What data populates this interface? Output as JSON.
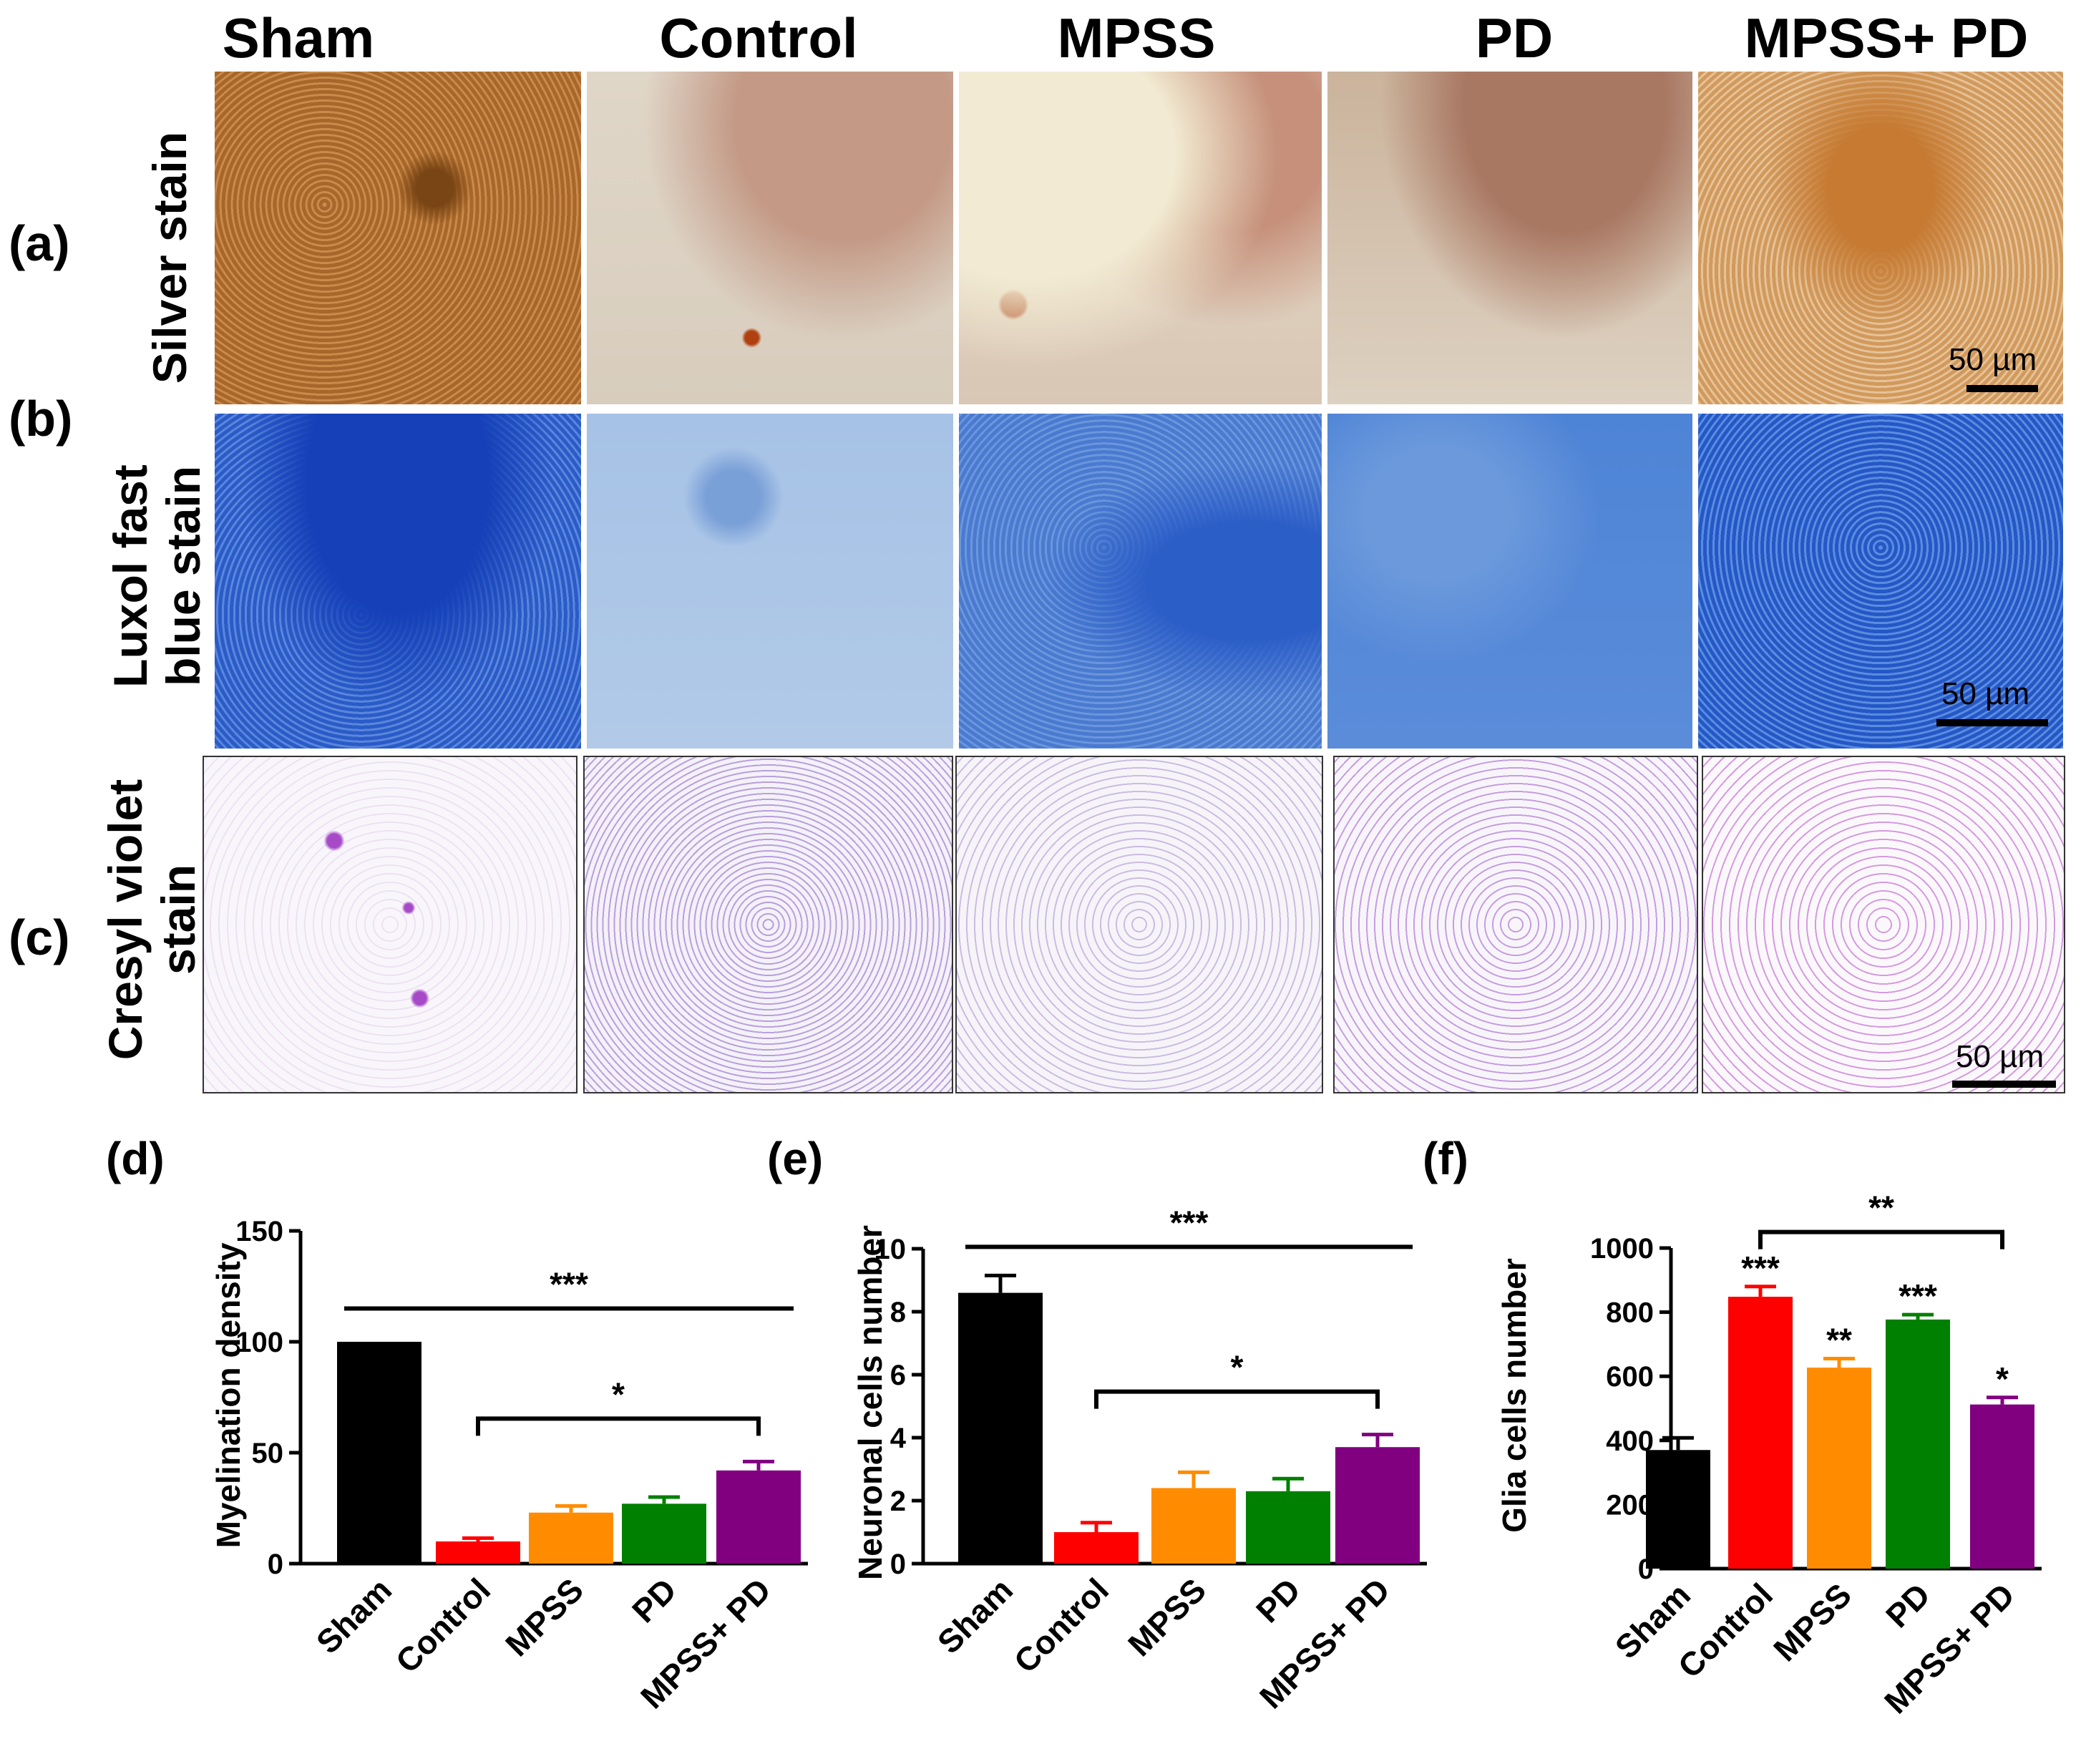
{
  "columns": [
    "Sham",
    "Control",
    "MPSS",
    "PD",
    "MPSS+ PD"
  ],
  "rows": [
    {
      "letter": "(a)",
      "label_lines": [
        "Silver stain"
      ]
    },
    {
      "letter": "(b)",
      "label_lines": [
        "Luxol fast",
        "blue stain"
      ]
    },
    {
      "letter": "(c)",
      "label_lines": [
        "Cresyl violet",
        "stain"
      ]
    }
  ],
  "scale_bar_label": "50 µm",
  "colors": {
    "Sham": "#000000",
    "Control": "#ff0000",
    "MPSS": "#ff8c00",
    "PD": "#008000",
    "MPSS+ PD": "#800080"
  },
  "chart_data": [
    {
      "panel": "(d)",
      "type": "bar",
      "categories": [
        "Sham",
        "Control",
        "MPSS",
        "PD",
        "MPSS+ PD"
      ],
      "values": [
        100,
        10,
        23,
        27,
        42
      ],
      "errors": [
        0,
        1.5,
        3,
        3,
        4
      ],
      "ylabel": "Myelination density",
      "ylim": [
        0,
        150
      ],
      "yticks": [
        0,
        50,
        100,
        150
      ],
      "annotations": [
        {
          "type": "line",
          "from": "Sham",
          "to": "MPSS+ PD",
          "label": "***"
        },
        {
          "type": "bracket",
          "from": "Control",
          "to": "MPSS+ PD",
          "label": "*"
        }
      ]
    },
    {
      "panel": "(e)",
      "type": "bar",
      "categories": [
        "Sham",
        "Control",
        "MPSS",
        "PD",
        "MPSS+ PD"
      ],
      "values": [
        8.6,
        1.0,
        2.4,
        2.3,
        3.7
      ],
      "errors": [
        0.55,
        0.3,
        0.5,
        0.4,
        0.4
      ],
      "ylabel": "Neuronal cells number",
      "ylim": [
        0,
        10
      ],
      "yticks": [
        0,
        2,
        4,
        6,
        8,
        10
      ],
      "annotations": [
        {
          "type": "line",
          "from": "Sham",
          "to": "MPSS+ PD",
          "label": "***"
        },
        {
          "type": "bracket",
          "from": "Control",
          "to": "MPSS+ PD",
          "label": "*"
        }
      ]
    },
    {
      "panel": "(f)",
      "type": "bar",
      "categories": [
        "Sham",
        "Control",
        "MPSS",
        "PD",
        "MPSS+ PD"
      ],
      "values": [
        370,
        848,
        627,
        777,
        512
      ],
      "errors": [
        38,
        32,
        28,
        15,
        22
      ],
      "ylabel": "Glia cells number",
      "ylim": [
        0,
        1000
      ],
      "yticks": [
        0,
        200,
        400,
        600,
        800,
        1000
      ],
      "bar_labels": [
        "",
        "***",
        "**",
        "***",
        "*"
      ],
      "annotations": [
        {
          "type": "bracket",
          "from": "Control",
          "to": "MPSS+ PD",
          "label": "**"
        }
      ]
    }
  ]
}
